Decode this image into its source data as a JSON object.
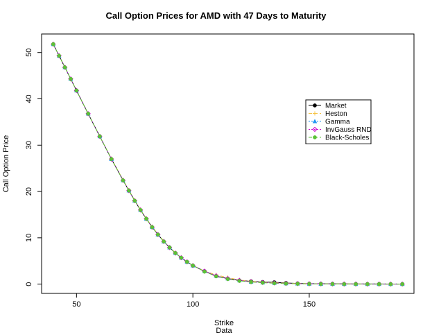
{
  "chart_data": {
    "type": "line",
    "title": "Call Option Prices for AMD with 47 Days to Maturity",
    "xlabel": "Strike",
    "xlabel2": "Data",
    "ylabel": "Call Option Price",
    "xlim": [
      35,
      195
    ],
    "ylim": [
      -2,
      54
    ],
    "xticks": [
      50,
      100,
      150
    ],
    "yticks": [
      0,
      10,
      20,
      30,
      40,
      50
    ],
    "legend_position": "right",
    "x": [
      40,
      42.5,
      45,
      47.5,
      50,
      55,
      60,
      65,
      70,
      72.5,
      75,
      77.5,
      80,
      82.5,
      85,
      87.5,
      90,
      92.5,
      95,
      97.5,
      100,
      105,
      110,
      115,
      120,
      125,
      130,
      135,
      140,
      145,
      150,
      155,
      160,
      165,
      170,
      175,
      180,
      185,
      190
    ],
    "series": [
      {
        "name": "Market",
        "color": "#000000",
        "marker": "circle",
        "line": "solid",
        "values": [
          51.8,
          49.3,
          46.8,
          44.3,
          41.8,
          36.8,
          31.9,
          27.0,
          22.4,
          20.2,
          18.0,
          16.0,
          14.1,
          12.3,
          10.7,
          9.2,
          7.9,
          6.7,
          5.7,
          4.8,
          4.0,
          2.8,
          1.7,
          1.2,
          0.8,
          0.6,
          0.45,
          0.4,
          0.25,
          0.15,
          0.1,
          0.08,
          0.06,
          0.05,
          0.04,
          0.03,
          0.03,
          0.02,
          0.02
        ]
      },
      {
        "name": "Heston",
        "color": "#f5c242",
        "marker": "plus",
        "line": "dashed",
        "values": [
          51.8,
          49.3,
          46.8,
          44.3,
          41.8,
          36.8,
          31.9,
          27.1,
          22.5,
          20.3,
          18.1,
          16.1,
          14.2,
          12.4,
          10.8,
          9.3,
          7.9,
          6.8,
          5.7,
          4.8,
          4.0,
          2.8,
          2.0,
          1.4,
          0.9,
          0.6,
          0.4,
          0.3,
          0.2,
          0.15,
          0.1,
          0.07,
          0.05,
          0.04,
          0.03,
          0.02,
          0.02,
          0.01,
          0.01
        ]
      },
      {
        "name": "Gamma",
        "color": "#2196f3",
        "marker": "triangle",
        "line": "dotted",
        "values": [
          51.8,
          49.3,
          46.8,
          44.3,
          41.8,
          36.8,
          31.9,
          27.0,
          22.4,
          20.2,
          18.0,
          16.0,
          14.1,
          12.3,
          10.7,
          9.2,
          7.9,
          6.7,
          5.7,
          4.8,
          4.0,
          2.8,
          1.8,
          1.2,
          0.8,
          0.5,
          0.35,
          0.25,
          0.15,
          0.1,
          0.07,
          0.05,
          0.03,
          0.02,
          0.02,
          0.01,
          0.01,
          0.01,
          0.01
        ]
      },
      {
        "name": "InvGauss RND",
        "color": "#cc00cc",
        "marker": "diamond",
        "line": "dotted",
        "values": [
          51.8,
          49.3,
          46.8,
          44.3,
          41.8,
          36.8,
          31.9,
          27.0,
          22.4,
          20.2,
          18.0,
          16.0,
          14.1,
          12.3,
          10.7,
          9.2,
          7.9,
          6.7,
          5.7,
          4.8,
          4.0,
          2.8,
          1.8,
          1.2,
          0.8,
          0.5,
          0.35,
          0.25,
          0.15,
          0.1,
          0.07,
          0.05,
          0.03,
          0.02,
          0.02,
          0.01,
          0.01,
          0.01,
          0.01
        ]
      },
      {
        "name": "Black-Scholes",
        "color": "#5bc236",
        "marker": "circle",
        "line": "dashed",
        "values": [
          51.8,
          49.3,
          46.8,
          44.3,
          41.8,
          36.8,
          31.9,
          27.0,
          22.4,
          20.2,
          18.0,
          16.0,
          14.1,
          12.3,
          10.7,
          9.2,
          7.9,
          6.7,
          5.7,
          4.8,
          4.0,
          2.7,
          1.7,
          1.1,
          0.7,
          0.45,
          0.3,
          0.2,
          0.12,
          0.08,
          0.05,
          0.03,
          0.02,
          0.01,
          0.01,
          0.01,
          0.0,
          0.0,
          0.0
        ]
      }
    ]
  }
}
